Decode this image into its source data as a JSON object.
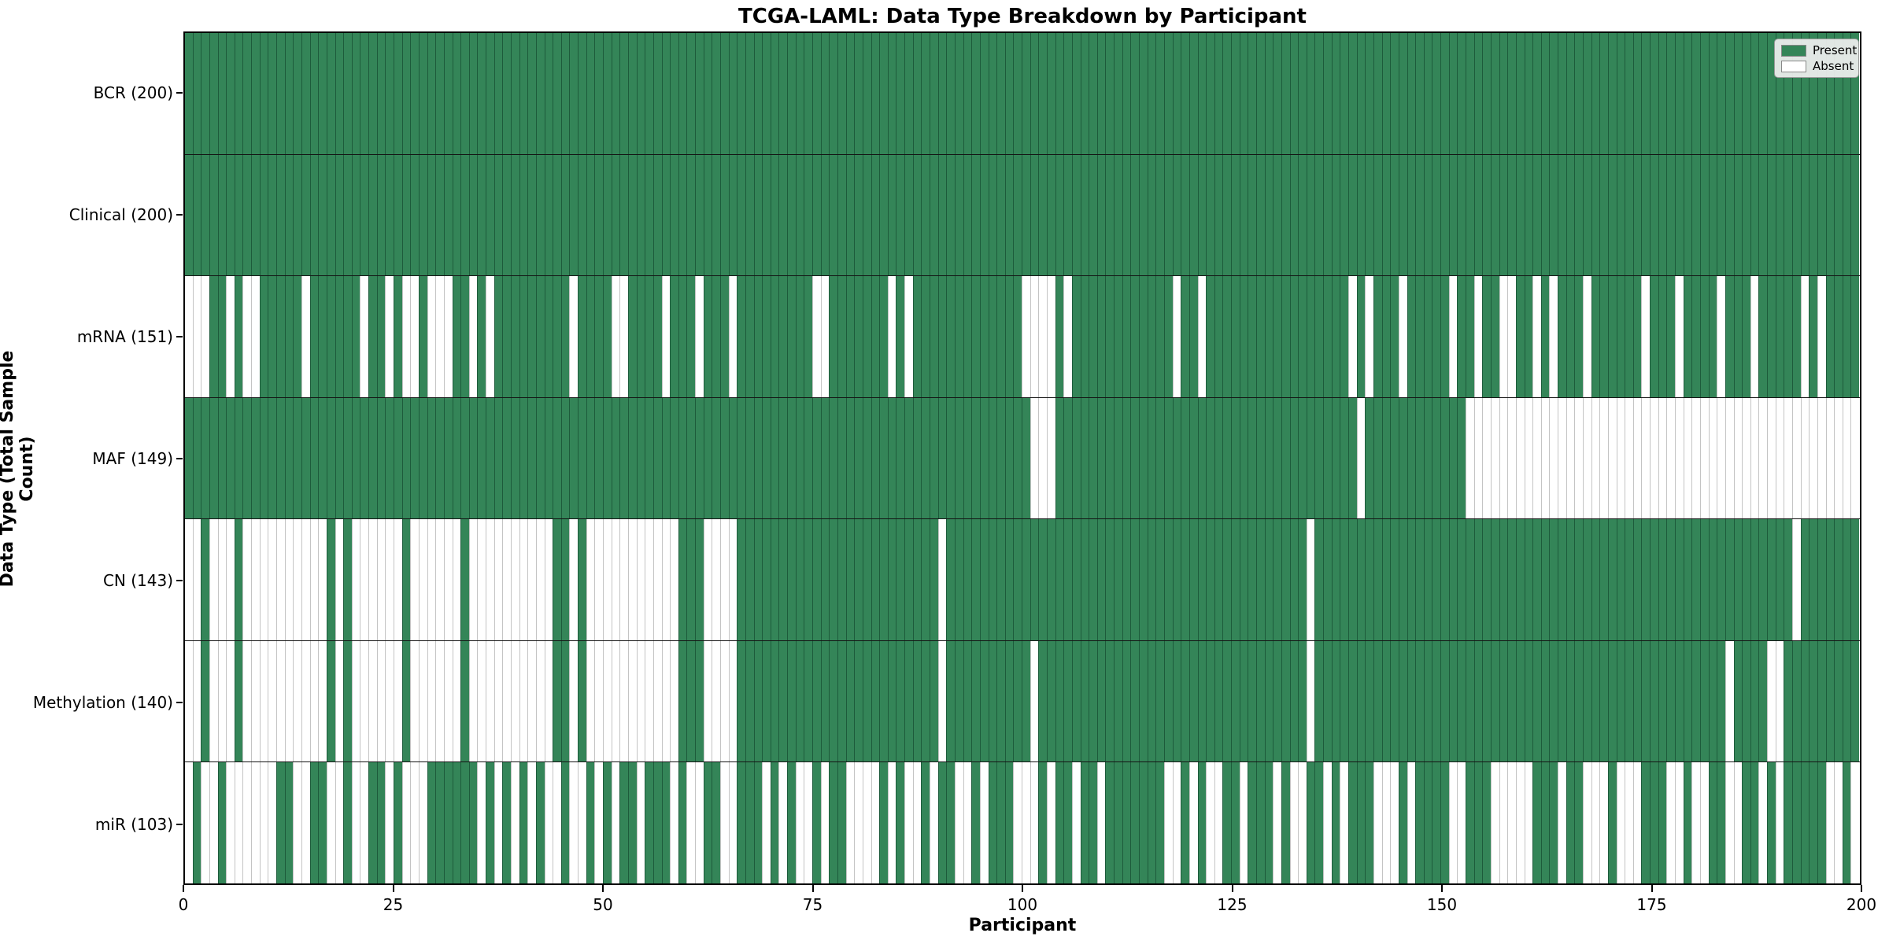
{
  "title": "TCGA-LAML: Data Type Breakdown by Participant",
  "xaxis": {
    "label": "Participant"
  },
  "yaxis": {
    "label": "Data Type (Total Sample Count)"
  },
  "legend": {
    "present_label": "Present",
    "absent_label": "Absent"
  },
  "colors": {
    "present": "#348558",
    "absent": "#ffffff",
    "present_grid": "#1d5b3b",
    "absent_grid": "#c4c4c4",
    "row_separator": "#141414",
    "plot_border": "#000000"
  },
  "chart_data": {
    "type": "heatmap",
    "title": "TCGA-LAML: Data Type Breakdown by Participant",
    "xlabel": "Participant",
    "ylabel": "Data Type (Total Sample Count)",
    "n_participants": 200,
    "x_ticks": [
      0,
      25,
      50,
      75,
      100,
      125,
      150,
      175,
      200
    ],
    "legend_entries": [
      {
        "label": "Present",
        "color": "#348558"
      },
      {
        "label": "Absent",
        "color": "#ffffff"
      }
    ],
    "cell_values": {
      "present": 1,
      "absent": 0
    },
    "rows": [
      {
        "label": "BCR (200)",
        "data_type": "BCR",
        "present_count": 200,
        "absent_participants": []
      },
      {
        "label": "Clinical (200)",
        "data_type": "Clinical",
        "present_count": 200,
        "absent_participants": []
      },
      {
        "label": "mRNA (151)",
        "data_type": "mRNA",
        "present_count": 151,
        "absent_participants": [
          0,
          1,
          2,
          5,
          7,
          8,
          14,
          21,
          24,
          26,
          27,
          29,
          30,
          31,
          34,
          36,
          46,
          51,
          52,
          57,
          61,
          65,
          75,
          76,
          84,
          86,
          100,
          101,
          102,
          103,
          105,
          118,
          121,
          139,
          141,
          145,
          151,
          154,
          157,
          158,
          161,
          163,
          167,
          174,
          178,
          183,
          187,
          193,
          195
        ]
      },
      {
        "label": "MAF (149)",
        "data_type": "MAF",
        "present_count": 149,
        "absent_participants": [
          101,
          102,
          103,
          140,
          153,
          154,
          155,
          156,
          157,
          158,
          159,
          160,
          161,
          162,
          163,
          164,
          165,
          166,
          167,
          168,
          169,
          170,
          171,
          172,
          173,
          174,
          175,
          176,
          177,
          178,
          179,
          180,
          181,
          182,
          183,
          184,
          185,
          186,
          187,
          188,
          189,
          190,
          191,
          192,
          193,
          194,
          195,
          196,
          197,
          198,
          199
        ]
      },
      {
        "label": "CN (143)",
        "data_type": "CN",
        "present_count": 143,
        "absent_participants": [
          0,
          1,
          3,
          4,
          5,
          7,
          8,
          9,
          10,
          11,
          12,
          13,
          14,
          15,
          16,
          18,
          20,
          21,
          22,
          23,
          24,
          25,
          27,
          28,
          29,
          30,
          31,
          32,
          34,
          35,
          36,
          37,
          38,
          39,
          40,
          41,
          42,
          43,
          46,
          48,
          49,
          50,
          51,
          52,
          53,
          54,
          55,
          56,
          57,
          58,
          62,
          63,
          64,
          65,
          90,
          134,
          192
        ]
      },
      {
        "label": "Methylation (140)",
        "data_type": "Methylation",
        "present_count": 140,
        "absent_participants": [
          0,
          1,
          3,
          4,
          5,
          7,
          8,
          9,
          10,
          11,
          12,
          13,
          14,
          15,
          16,
          18,
          20,
          21,
          22,
          23,
          24,
          25,
          27,
          28,
          29,
          30,
          31,
          32,
          34,
          35,
          36,
          37,
          38,
          39,
          40,
          41,
          42,
          43,
          46,
          48,
          49,
          50,
          51,
          52,
          53,
          54,
          55,
          56,
          57,
          58,
          62,
          63,
          64,
          65,
          90,
          101,
          134,
          184,
          189,
          190
        ]
      },
      {
        "label": "miR (103)",
        "data_type": "miR",
        "present_count": 103,
        "absent_participants": [
          0,
          2,
          3,
          5,
          6,
          7,
          8,
          9,
          10,
          13,
          14,
          17,
          18,
          20,
          21,
          24,
          26,
          27,
          28,
          35,
          37,
          39,
          41,
          43,
          44,
          46,
          47,
          49,
          51,
          54,
          58,
          60,
          61,
          64,
          65,
          69,
          71,
          73,
          74,
          76,
          79,
          80,
          81,
          82,
          84,
          86,
          87,
          89,
          92,
          93,
          95,
          99,
          100,
          101,
          103,
          106,
          109,
          117,
          118,
          120,
          122,
          123,
          126,
          130,
          132,
          133,
          136,
          138,
          142,
          143,
          144,
          146,
          151,
          152,
          156,
          157,
          158,
          159,
          160,
          164,
          167,
          168,
          169,
          171,
          172,
          173,
          177,
          178,
          180,
          181,
          184,
          185,
          188,
          190,
          196,
          197,
          199
        ]
      }
    ]
  }
}
